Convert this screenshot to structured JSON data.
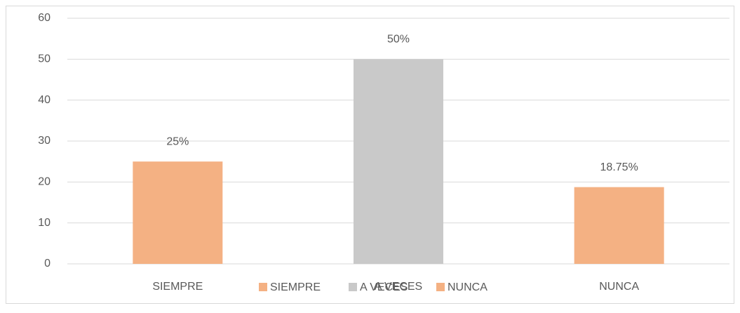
{
  "chart_data": {
    "type": "bar",
    "categories": [
      "SIEMPRE",
      "A VECES",
      "NUNCA"
    ],
    "values": [
      25,
      50,
      18.75
    ],
    "value_labels": [
      "25%",
      "50%",
      "18.75%"
    ],
    "colors": [
      "#f4b183",
      "#c9c9c9",
      "#f4b183"
    ],
    "ylim": [
      0,
      60
    ],
    "yticks": [
      0,
      10,
      20,
      30,
      40,
      50,
      60
    ],
    "grid": true,
    "legend": "bottom"
  }
}
